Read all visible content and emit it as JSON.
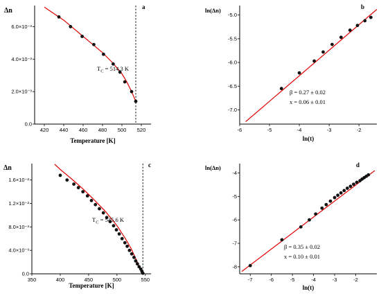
{
  "chart_data": [
    {
      "id": "a",
      "type": "scatter",
      "panel_label": "a",
      "ylabel": "Δn",
      "xlabel": "Temperature [K]",
      "xlim": [
        410,
        530
      ],
      "ylim": [
        0,
        0.0073
      ],
      "xticks": [
        420,
        440,
        460,
        480,
        500,
        520
      ],
      "xtick_labels": [
        "420",
        "440",
        "460",
        "480",
        "500",
        "520"
      ],
      "yticks": [
        0,
        0.002,
        0.004,
        0.006
      ],
      "ytick_labels": [
        "0.0",
        "2.0×10⁻³",
        "4.0×10⁻³",
        "6.0×10⁻³"
      ],
      "annotations": [
        {
          "text": "T",
          "sub": "C",
          "rest": " = 514.3 K"
        }
      ],
      "tc": 514.3,
      "points": {
        "x": [
          435,
          447,
          459,
          471,
          481,
          491,
          498,
          503,
          510,
          514.3
        ],
        "y": [
          0.0066,
          0.006,
          0.0054,
          0.0049,
          0.0043,
          0.0037,
          0.0032,
          0.0026,
          0.002,
          0.0014
        ]
      },
      "fit": {
        "x": [
          420,
          430,
          440,
          450,
          460,
          470,
          480,
          490,
          500,
          505,
          510,
          514.3
        ],
        "y": [
          0.0072,
          0.0068,
          0.0064,
          0.0059,
          0.0054,
          0.0049,
          0.0044,
          0.0038,
          0.0031,
          0.0026,
          0.002,
          0.0014
        ]
      }
    },
    {
      "id": "b",
      "type": "scatter",
      "panel_label": "b",
      "ylabel": "ln(Δn)",
      "xlabel": "ln(t)",
      "xlim": [
        -6,
        -1.4
      ],
      "ylim": [
        -7.3,
        -4.8
      ],
      "xticks": [
        -6,
        -5,
        -4,
        -3,
        -2
      ],
      "xtick_labels": [
        "-6",
        "-5",
        "-4",
        "-3",
        "-2"
      ],
      "yticks": [
        -7.0,
        -6.5,
        -6.0,
        -5.5,
        -5.0
      ],
      "ytick_labels": [
        "-7.0",
        "-6.5",
        "-6.0",
        "-5.5",
        "-5.0"
      ],
      "annotations": [
        {
          "text": "β = 0.27 ± 0.02"
        },
        {
          "text": "x = 0.06 ± 0.01"
        }
      ],
      "points": {
        "x": [
          -4.6,
          -4.0,
          -3.5,
          -3.2,
          -2.9,
          -2.6,
          -2.3,
          -2.05,
          -1.8,
          -1.6
        ],
        "y": [
          -6.55,
          -6.22,
          -5.97,
          -5.78,
          -5.62,
          -5.47,
          -5.32,
          -5.22,
          -5.12,
          -5.05
        ]
      },
      "fit": {
        "x": [
          -5.8,
          -1.4
        ],
        "y": [
          -7.25,
          -4.88
        ]
      }
    },
    {
      "id": "c",
      "type": "scatter",
      "panel_label": "c",
      "ylabel": "Δn",
      "xlabel": "Temperature [K]",
      "xlim": [
        350,
        560
      ],
      "ylim": [
        0,
        0.0188
      ],
      "xticks": [
        350,
        400,
        450,
        500,
        550
      ],
      "xtick_labels": [
        "350",
        "400",
        "450",
        "500",
        "550"
      ],
      "yticks": [
        0,
        0.004,
        0.008,
        0.012,
        0.016
      ],
      "ytick_labels": [
        "0.0",
        "4.0×10⁻³",
        "8.0×10⁻³",
        "1.2×10⁻²",
        "1.6×10⁻²"
      ],
      "annotations": [
        {
          "text": "T",
          "sub": "C",
          "rest": " = 545.6 K"
        }
      ],
      "tc": 545.6,
      "points": {
        "x": [
          400,
          412,
          424,
          432,
          440,
          448,
          455,
          462,
          469,
          476,
          482,
          488,
          494,
          499,
          504,
          509,
          514,
          518,
          522,
          526,
          530,
          533,
          536,
          539,
          542,
          544,
          545.6
        ],
        "y": [
          0.0168,
          0.016,
          0.0153,
          0.0147,
          0.014,
          0.0133,
          0.0125,
          0.0118,
          0.0111,
          0.0104,
          0.0096,
          0.0089,
          0.0082,
          0.0075,
          0.0068,
          0.006,
          0.0053,
          0.0047,
          0.004,
          0.0034,
          0.0028,
          0.0022,
          0.0017,
          0.0012,
          0.0008,
          0.0004,
          0.0001
        ]
      },
      "fit": {
        "x": [
          390,
          400,
          420,
          440,
          460,
          480,
          500,
          515,
          525,
          535,
          540,
          543,
          545.6
        ],
        "y": [
          0.0187,
          0.0178,
          0.0162,
          0.0145,
          0.0126,
          0.0106,
          0.0082,
          0.006,
          0.0043,
          0.0022,
          0.0011,
          0.0005,
          0.0
        ]
      }
    },
    {
      "id": "d",
      "type": "scatter",
      "panel_label": "d",
      "ylabel": "ln(Δn)",
      "xlabel": "ln(t)",
      "xlim": [
        -7.5,
        -1.0
      ],
      "ylim": [
        -8.3,
        -3.6
      ],
      "xticks": [
        -7,
        -6,
        -5,
        -4,
        -3,
        -2
      ],
      "xtick_labels": [
        "-7",
        "-6",
        "-5",
        "-4",
        "-3",
        "-2"
      ],
      "yticks": [
        -8,
        -7,
        -6,
        -5,
        -4
      ],
      "ytick_labels": [
        "-8",
        "-7",
        "-6",
        "-5",
        "-4"
      ],
      "annotations": [
        {
          "text": "β = 0.35 ± 0.02"
        },
        {
          "text": "x = 0.10 ± 0.01"
        }
      ],
      "points": {
        "x": [
          -7.0,
          -5.5,
          -4.6,
          -4.2,
          -3.9,
          -3.6,
          -3.4,
          -3.2,
          -3.0,
          -2.85,
          -2.7,
          -2.55,
          -2.4,
          -2.25,
          -2.1,
          -1.95,
          -1.8,
          -1.7,
          -1.6,
          -1.5,
          -1.4
        ],
        "y": [
          -7.95,
          -6.85,
          -6.3,
          -6.0,
          -5.75,
          -5.5,
          -5.35,
          -5.2,
          -5.05,
          -4.95,
          -4.85,
          -4.75,
          -4.65,
          -4.57,
          -4.48,
          -4.4,
          -4.33,
          -4.26,
          -4.2,
          -4.14,
          -4.08
        ]
      },
      "fit": {
        "x": [
          -7.4,
          -1.1
        ],
        "y": [
          -8.2,
          -3.9
        ]
      }
    }
  ]
}
